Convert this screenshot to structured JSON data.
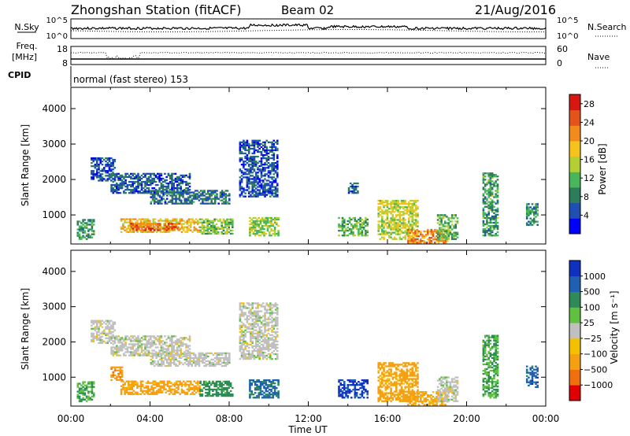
{
  "header": {
    "station_title": "Zhongshan Station (fitACF)",
    "beam_label": "Beam 02",
    "date_label": "21/Aug/2016"
  },
  "top_panels": {
    "nsky_label": "N.Sky",
    "nsky_ticks": [
      "10^5",
      "10^0"
    ],
    "nsearch_label": "N.Search",
    "nsearch_ticks": [
      "10^5",
      "10^0"
    ],
    "freq_label": "Freq.",
    "freq_unit": "[MHz]",
    "freq_ticks": [
      "18",
      "8"
    ],
    "nave_label": "Nave",
    "nave_ticks": [
      "60",
      "0"
    ],
    "cpid_label": "CPID",
    "cpid_text": "normal (fast stereo) 153"
  },
  "x_axis": {
    "label": "Time UT",
    "ticks": [
      "00:00",
      "04:00",
      "08:00",
      "12:00",
      "16:00",
      "20:00",
      "00:00"
    ],
    "range_hours": [
      0,
      24
    ]
  },
  "colors": {
    "axis": "#000000",
    "power_scale": [
      "#0000ff",
      "#1f4fb0",
      "#2e7d5a",
      "#49b65a",
      "#b4cf34",
      "#f5c31b",
      "#f28a1c",
      "#e3531a",
      "#d81810"
    ],
    "velocity_scale": [
      "#e00000",
      "#f07010",
      "#f5a010",
      "#f5c000",
      "#c0c0c0",
      "#60c040",
      "#2e8b57",
      "#2060b0",
      "#1030c0"
    ]
  },
  "chart_data": [
    {
      "type": "heatmap",
      "panel": "power",
      "ylabel": "Slant Range [km]",
      "y_ticks": [
        1000,
        2000,
        3000,
        4000
      ],
      "ylim": [
        180,
        4600
      ],
      "xlim_hours": [
        0,
        24
      ],
      "colorbar": {
        "label": "Power [dB]",
        "ticks": [
          4,
          8,
          12,
          16,
          20,
          24,
          28
        ],
        "range": [
          0,
          30
        ]
      },
      "echo_regions": [
        {
          "t0": 0.3,
          "t1": 1.2,
          "r0": 300,
          "r1": 850,
          "value": 10
        },
        {
          "t0": 1.0,
          "t1": 2.2,
          "r0": 1950,
          "r1": 2600,
          "value": 5
        },
        {
          "t0": 2.0,
          "t1": 6.0,
          "r0": 1600,
          "r1": 2150,
          "value": 6
        },
        {
          "t0": 2.5,
          "t1": 6.5,
          "r0": 500,
          "r1": 900,
          "value": 18
        },
        {
          "t0": 3.0,
          "t1": 5.5,
          "r0": 550,
          "r1": 750,
          "value": 24
        },
        {
          "t0": 4.0,
          "t1": 8.0,
          "r0": 1300,
          "r1": 1700,
          "value": 7
        },
        {
          "t0": 6.5,
          "t1": 8.2,
          "r0": 450,
          "r1": 900,
          "value": 13
        },
        {
          "t0": 8.5,
          "t1": 10.4,
          "r0": 1500,
          "r1": 3100,
          "value": 5
        },
        {
          "t0": 9.0,
          "t1": 10.5,
          "r0": 400,
          "r1": 900,
          "value": 14
        },
        {
          "t0": 13.5,
          "t1": 15.0,
          "r0": 400,
          "r1": 900,
          "value": 12
        },
        {
          "t0": 14.0,
          "t1": 14.5,
          "r0": 1600,
          "r1": 1900,
          "value": 5
        },
        {
          "t0": 15.5,
          "t1": 17.5,
          "r0": 300,
          "r1": 1400,
          "value": 16
        },
        {
          "t0": 17.0,
          "t1": 19.0,
          "r0": 200,
          "r1": 600,
          "value": 22
        },
        {
          "t0": 18.5,
          "t1": 19.5,
          "r0": 300,
          "r1": 1000,
          "value": 12
        },
        {
          "t0": 20.8,
          "t1": 21.6,
          "r0": 400,
          "r1": 2200,
          "value": 10
        },
        {
          "t0": 23.0,
          "t1": 23.6,
          "r0": 700,
          "r1": 1300,
          "value": 9
        }
      ]
    },
    {
      "type": "heatmap",
      "panel": "velocity",
      "ylabel": "Slant Range [km]",
      "y_ticks": [
        1000,
        2000,
        3000,
        4000
      ],
      "ylim": [
        180,
        4600
      ],
      "xlim_hours": [
        0,
        24
      ],
      "colorbar": {
        "label": "Velocity [m s⁻¹]",
        "tick_labels": [
          "1000",
          "500",
          "100",
          "25",
          "−25",
          "−100",
          "−500",
          "−1000"
        ]
      },
      "echo_regions": [
        {
          "t0": 0.3,
          "t1": 1.2,
          "r0": 300,
          "r1": 850,
          "value": 100
        },
        {
          "t0": 1.0,
          "t1": 2.2,
          "r0": 1950,
          "r1": 2600,
          "value": 0
        },
        {
          "t0": 2.0,
          "t1": 6.0,
          "r0": 1600,
          "r1": 2150,
          "value": 0
        },
        {
          "t0": 2.0,
          "t1": 2.6,
          "r0": 900,
          "r1": 1300,
          "value": -200
        },
        {
          "t0": 2.5,
          "t1": 6.5,
          "r0": 500,
          "r1": 900,
          "value": -150
        },
        {
          "t0": 4.0,
          "t1": 8.0,
          "r0": 1300,
          "r1": 1700,
          "value": 0
        },
        {
          "t0": 6.5,
          "t1": 8.2,
          "r0": 450,
          "r1": 900,
          "value": 150
        },
        {
          "t0": 8.5,
          "t1": 10.4,
          "r0": 1500,
          "r1": 3100,
          "value": 0
        },
        {
          "t0": 9.0,
          "t1": 10.5,
          "r0": 400,
          "r1": 900,
          "value": 300
        },
        {
          "t0": 13.5,
          "t1": 15.0,
          "r0": 400,
          "r1": 900,
          "value": 600
        },
        {
          "t0": 15.5,
          "t1": 17.5,
          "r0": 300,
          "r1": 1400,
          "value": -150
        },
        {
          "t0": 17.0,
          "t1": 19.0,
          "r0": 200,
          "r1": 600,
          "value": -120
        },
        {
          "t0": 18.5,
          "t1": 19.5,
          "r0": 300,
          "r1": 1000,
          "value": 0
        },
        {
          "t0": 20.8,
          "t1": 21.6,
          "r0": 400,
          "r1": 2200,
          "value": 100
        },
        {
          "t0": 23.0,
          "t1": 23.6,
          "r0": 700,
          "r1": 1300,
          "value": 400
        }
      ]
    }
  ]
}
